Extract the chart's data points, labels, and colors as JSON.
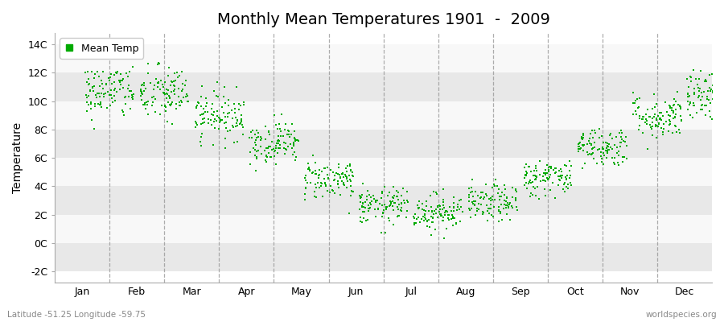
{
  "title": "Monthly Mean Temperatures 1901  -  2009",
  "ylabel": "Temperature",
  "latitude_label": "Latitude -51.25 Longitude -59.75",
  "watermark": "worldspecies.org",
  "legend_label": "Mean Temp",
  "dot_color": "#00aa00",
  "dot_size": 3,
  "ylim": [
    -2.8,
    14.8
  ],
  "yticks": [
    -2,
    0,
    2,
    4,
    6,
    8,
    10,
    12,
    14
  ],
  "ytick_labels": [
    "-2C",
    "0C",
    "2C",
    "4C",
    "6C",
    "8C",
    "10C",
    "12C",
    "14C"
  ],
  "months": [
    "Jan",
    "Feb",
    "Mar",
    "Apr",
    "May",
    "Jun",
    "Jul",
    "Aug",
    "Sep",
    "Oct",
    "Nov",
    "Dec"
  ],
  "background_color": "#ffffff",
  "plot_bg_color": "#ffffff",
  "title_fontsize": 14,
  "axis_fontsize": 10,
  "tick_fontsize": 9,
  "n_years": 109,
  "monthly_means": [
    10.7,
    10.5,
    9.0,
    7.1,
    4.5,
    2.6,
    2.2,
    2.8,
    4.6,
    6.8,
    8.9,
    10.3
  ],
  "monthly_stds": [
    1.0,
    1.0,
    0.85,
    0.75,
    0.7,
    0.65,
    0.65,
    0.65,
    0.65,
    0.7,
    0.8,
    0.9
  ],
  "band_colors": [
    "#e8e8e8",
    "#f8f8f8"
  ],
  "grid_color": "#cccccc",
  "dashed_line_color": "#999999"
}
